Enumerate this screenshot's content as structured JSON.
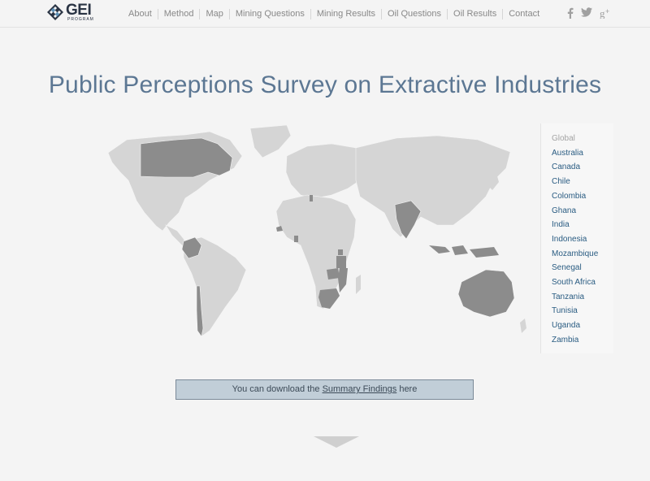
{
  "header": {
    "logo_text": "GEI",
    "logo_subtext": "PROGRAM",
    "nav": [
      {
        "label": "About"
      },
      {
        "label": "Method"
      },
      {
        "label": "Map"
      },
      {
        "label": "Mining Questions"
      },
      {
        "label": "Mining Results"
      },
      {
        "label": "Oil Questions"
      },
      {
        "label": "Oil Results"
      },
      {
        "label": "Contact"
      }
    ],
    "social_icons": [
      "facebook-icon",
      "twitter-icon",
      "google-plus-icon"
    ]
  },
  "page": {
    "title": "Public Perceptions Survey on Extractive Industries"
  },
  "map": {
    "land_color": "#d5d5d5",
    "highlight_color": "#8c8c8c",
    "highlighted_countries": [
      "Canada",
      "Colombia",
      "Chile",
      "Senegal",
      "Ghana",
      "Tunisia",
      "Uganda",
      "Tanzania",
      "Zambia",
      "Mozambique",
      "South Africa",
      "India",
      "Indonesia",
      "Australia"
    ]
  },
  "countries": {
    "global_label": "Global",
    "items": [
      "Australia",
      "Canada",
      "Chile",
      "Colombia",
      "Ghana",
      "India",
      "Indonesia",
      "Mozambique",
      "Senegal",
      "South Africa",
      "Tanzania",
      "Tunisia",
      "Uganda",
      "Zambia"
    ]
  },
  "download": {
    "prefix": "You can download the ",
    "link": "Summary Findings",
    "suffix": " here"
  },
  "colors": {
    "title": "#5c7793",
    "link": "#2a5c82",
    "banner_bg": "#c1ced8"
  }
}
